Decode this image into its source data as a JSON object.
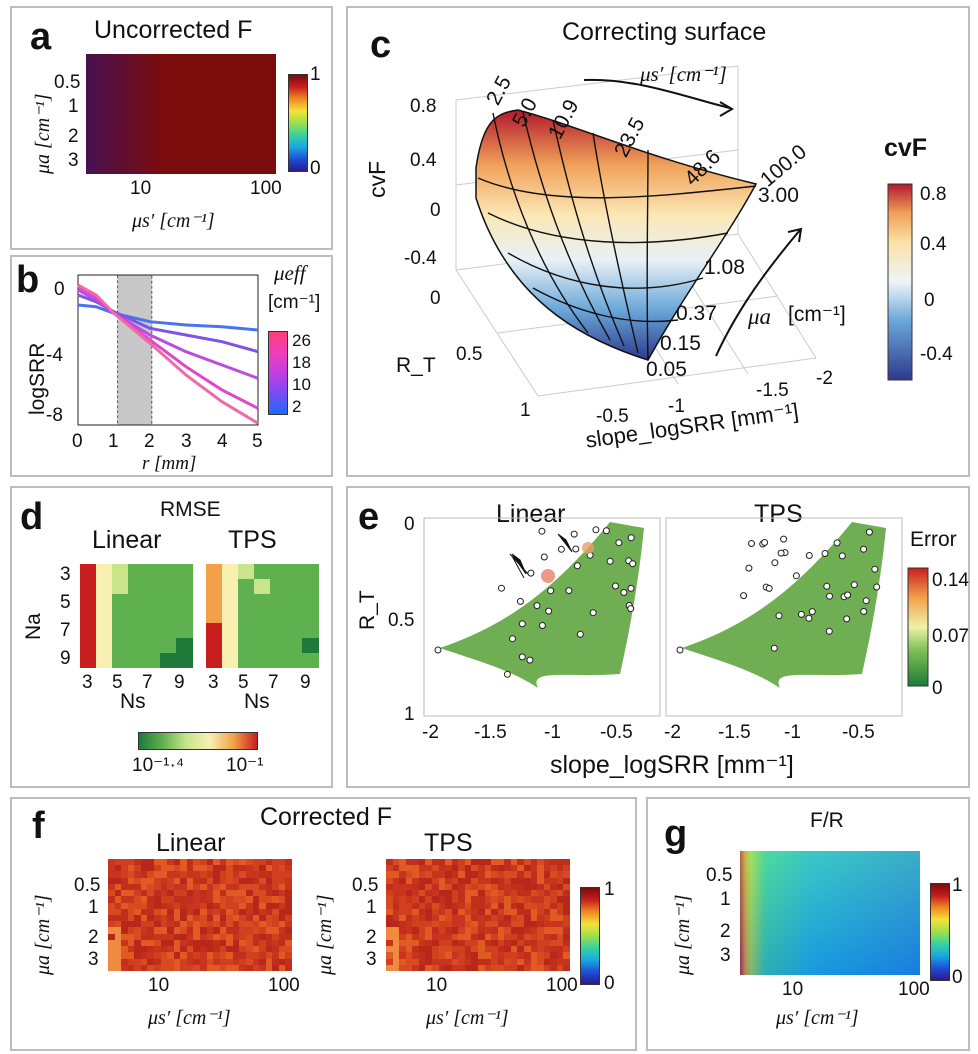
{
  "panels": {
    "a": {
      "label": "a",
      "title": "Uncorrected F",
      "xlabel": "μs′ [cm⁻¹]",
      "ylabel": "μa [cm⁻¹]",
      "xticks": [
        "10",
        "100"
      ],
      "yticks": [
        "0.5",
        "1",
        "2",
        "3"
      ],
      "cbar_ticks": [
        "1",
        "0"
      ]
    },
    "b": {
      "label": "b",
      "xlabel": "r [mm]",
      "ylabel": "logSRR",
      "xticks": [
        "0",
        "1",
        "2",
        "3",
        "4",
        "5"
      ],
      "yticks": [
        "0",
        "-4",
        "-8"
      ],
      "legend_title": "μeff",
      "legend_unit": "[cm⁻¹]",
      "cbar_ticks": [
        "26",
        "18",
        "10",
        "2"
      ]
    },
    "c": {
      "label": "c",
      "title": "Correcting surface",
      "zlabel": "cvF",
      "zticks": [
        "0.8",
        "0.4",
        "0",
        "-0.4"
      ],
      "ylabel": "R_T",
      "yticks": [
        "0",
        "0.5",
        "1"
      ],
      "xlabel": "slope_logSRR [mm⁻¹]",
      "xticks": [
        "-0.5",
        "-1",
        "-1.5",
        "-2"
      ],
      "mus_label": "μs′ [cm⁻¹]",
      "mus_values": [
        "2.5",
        "5.0",
        "10.9",
        "23.5",
        "48.6",
        "100.0"
      ],
      "mua_label": "μa",
      "mua_unit": "[cm⁻¹]",
      "mua_values": [
        "3.00",
        "1.08",
        "0.37",
        "0.15",
        "0.05"
      ],
      "cbar_title": "cvF",
      "cbar_ticks": [
        "0.8",
        "0.4",
        "0",
        "-0.4"
      ]
    },
    "d": {
      "label": "d",
      "title": "RMSE",
      "sub_left": "Linear",
      "sub_right": "TPS",
      "ylabel": "Na",
      "xlabel": "Ns",
      "yticks": [
        "3",
        "5",
        "7",
        "9"
      ],
      "xticks": [
        "3",
        "5",
        "7",
        "9"
      ],
      "cbar_ticks": [
        "10⁻¹·⁴",
        "10⁻¹"
      ]
    },
    "e": {
      "label": "e",
      "sub_left": "Linear",
      "sub_right": "TPS",
      "ylabel": "R_T",
      "yticks": [
        "0",
        "0.5",
        "1"
      ],
      "xticks": [
        "-2",
        "-1.5",
        "-1",
        "-0.5"
      ],
      "xlabel": "slope_logSRR [mm⁻¹]",
      "cbar_title": "Error",
      "cbar_ticks": [
        "0.14",
        "0.07",
        "0"
      ]
    },
    "f": {
      "label": "f",
      "title": "Corrected F",
      "sub_left": "Linear",
      "sub_right": "TPS",
      "xlabel": "μs′ [cm⁻¹]",
      "ylabel": "μa [cm⁻¹]",
      "xticks": [
        "10",
        "100"
      ],
      "yticks": [
        "0.5",
        "1",
        "2",
        "3"
      ],
      "cbar_ticks": [
        "1",
        "0"
      ]
    },
    "g": {
      "label": "g",
      "title": "F/R",
      "xlabel": "μs′ [cm⁻¹]",
      "ylabel": "μa [cm⁻¹]",
      "xticks": [
        "10",
        "100"
      ],
      "yticks": [
        "0.5",
        "1",
        "2",
        "3"
      ],
      "cbar_ticks": [
        "1",
        "0"
      ]
    }
  },
  "colors": {
    "jet": [
      "#2a1a8f",
      "#1f4fd6",
      "#19a8e0",
      "#37d3a0",
      "#9ee04a",
      "#f4e23a",
      "#f08a22",
      "#c81e1e",
      "#7a0c0c"
    ],
    "rdylgn": [
      "#1f7a3a",
      "#5fb04f",
      "#c8e58a",
      "#f7f0b0",
      "#f2a14a",
      "#c81e1e"
    ],
    "cvf": [
      "#2d3a8c",
      "#6aa7d8",
      "#e8f1f7",
      "#fbe7b5",
      "#f0a15a",
      "#b2182b"
    ]
  },
  "chart_data": [
    {
      "type": "line",
      "panel": "b",
      "xlabel": "r [mm]",
      "ylabel": "logSRR",
      "xlim": [
        0,
        5
      ],
      "ylim": [
        -8,
        1
      ],
      "shaded_region": [
        1.1,
        2.05
      ],
      "legend_title": "μeff [cm⁻¹]",
      "colorbar_range": [
        2,
        26
      ],
      "series": [
        {
          "values": [
            [
              0,
              -0.8
            ],
            [
              0.5,
              -0.9
            ],
            [
              1,
              -1.3
            ],
            [
              2,
              -1.8
            ],
            [
              3,
              -2.0
            ],
            [
              4,
              -2.1
            ],
            [
              5,
              -2.3
            ]
          ],
          "color": "#4a73ee"
        },
        {
          "values": [
            [
              0,
              -0.2
            ],
            [
              0.5,
              -0.6
            ],
            [
              1,
              -1.2
            ],
            [
              2,
              -2.2
            ],
            [
              3,
              -2.6
            ],
            [
              4,
              -3.0
            ],
            [
              5,
              -3.6
            ]
          ],
          "color": "#7b55e6"
        },
        {
          "values": [
            [
              0,
              0.1
            ],
            [
              0.5,
              -0.5
            ],
            [
              1,
              -1.3
            ],
            [
              2,
              -2.6
            ],
            [
              3,
              -3.6
            ],
            [
              4,
              -4.4
            ],
            [
              5,
              -5.2
            ]
          ],
          "color": "#b94de0"
        },
        {
          "values": [
            [
              0,
              0.3
            ],
            [
              0.5,
              -0.3
            ],
            [
              1,
              -1.3
            ],
            [
              2,
              -2.9
            ],
            [
              3,
              -4.5
            ],
            [
              4,
              -5.9
            ],
            [
              5,
              -7.0
            ]
          ],
          "color": "#de48c8"
        },
        {
          "values": [
            [
              0,
              0.4
            ],
            [
              0.5,
              -0.2
            ],
            [
              1,
              -1.3
            ],
            [
              2,
              -3.1
            ],
            [
              3,
              -5.0
            ],
            [
              4,
              -6.6
            ],
            [
              5,
              -7.9
            ]
          ],
          "color": "#f06aa8"
        }
      ]
    },
    {
      "type": "heatmap",
      "panel": "d",
      "title": "RMSE",
      "subplots": [
        "Linear",
        "TPS"
      ],
      "xlabel": "Ns",
      "ylabel": "Na",
      "x": [
        3,
        4,
        5,
        6,
        7,
        8,
        9
      ],
      "y": [
        3,
        4,
        5,
        6,
        7,
        8,
        9
      ],
      "colorbar_range": [
        "10⁻¹·⁴",
        "10⁻¹"
      ]
    }
  ]
}
